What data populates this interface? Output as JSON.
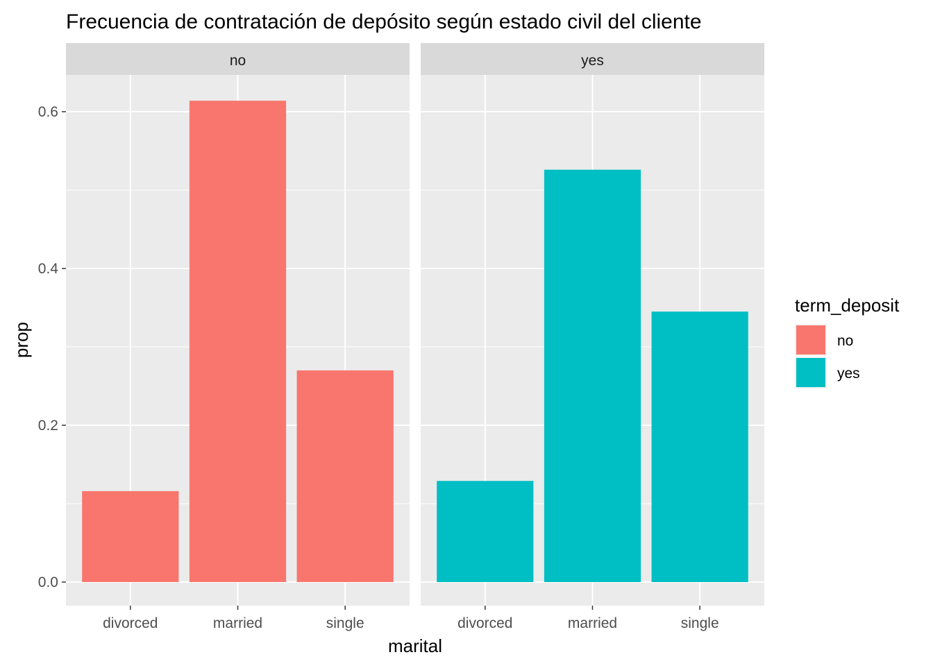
{
  "chart_data": {
    "type": "bar",
    "title": "Frecuencia de contratación de depósito según estado civil del cliente",
    "xlabel": "marital",
    "ylabel": "prop",
    "ylim": [
      -0.075,
      0.67
    ],
    "yticks": [
      0.0,
      0.2,
      0.4,
      0.6
    ],
    "ytick_labels": [
      "0.0",
      "0.2",
      "0.4",
      "0.6"
    ],
    "categories": [
      "divorced",
      "married",
      "single"
    ],
    "grid": true,
    "legend": {
      "title": "term_deposit",
      "position": "right",
      "entries": [
        {
          "label": "no",
          "color": "#F8766D"
        },
        {
          "label": "yes",
          "color": "#00BFC4"
        }
      ]
    },
    "facets": [
      {
        "label": "no",
        "color": "#F8766D",
        "values": [
          0.116,
          0.614,
          0.27
        ]
      },
      {
        "label": "yes",
        "color": "#00BFC4",
        "values": [
          0.129,
          0.526,
          0.345
        ]
      }
    ]
  }
}
